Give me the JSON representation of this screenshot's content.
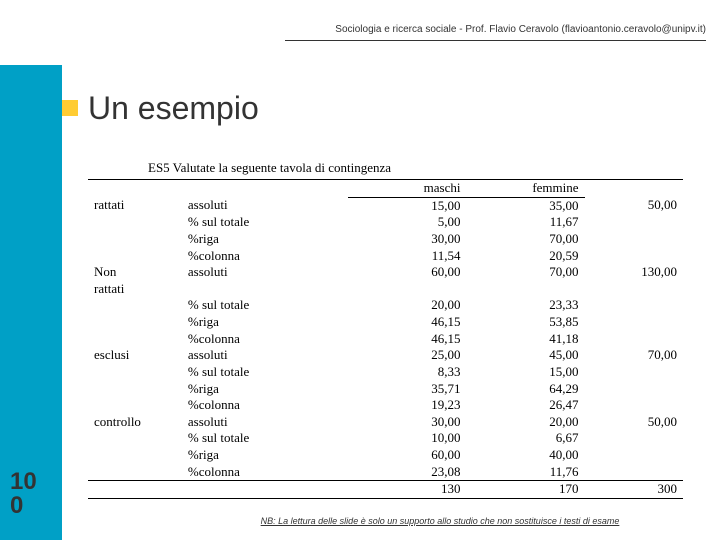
{
  "header": {
    "text": "Sociologia e ricerca sociale - Prof. Flavio Ceravolo (flavioantonio.ceravolo@unipv.it)"
  },
  "title": "Un esempio",
  "slide_number_line1": "10",
  "slide_number_line2": "0",
  "footer": "NB: La lettura delle slide è solo un supporto allo studio che non sostituisce i testi di esame",
  "table": {
    "caption": "ES5 Valutate la seguente tavola di contingenza",
    "columns": [
      "maschi",
      "femmine"
    ],
    "groups": [
      {
        "label": "rattati",
        "rows": [
          {
            "measure": "assoluti",
            "m": "15,00",
            "f": "35,00",
            "tot": "50,00"
          },
          {
            "measure": "% sul totale",
            "m": "5,00",
            "f": "11,67",
            "tot": ""
          },
          {
            "measure": "%riga",
            "m": "30,00",
            "f": "70,00",
            "tot": ""
          },
          {
            "measure": "%colonna",
            "m": "11,54",
            "f": "20,59",
            "tot": ""
          }
        ]
      },
      {
        "label": "Non rattati",
        "label_line1": "Non",
        "label_line2": "rattati",
        "rows": [
          {
            "measure": "assoluti",
            "m": "60,00",
            "f": "70,00",
            "tot": "130,00"
          },
          {
            "measure": "",
            "m": "",
            "f": "",
            "tot": ""
          },
          {
            "measure": "% sul totale",
            "m": "20,00",
            "f": "23,33",
            "tot": ""
          },
          {
            "measure": "%riga",
            "m": "46,15",
            "f": "53,85",
            "tot": ""
          },
          {
            "measure": "%colonna",
            "m": "46,15",
            "f": "41,18",
            "tot": ""
          }
        ]
      },
      {
        "label": "esclusi",
        "rows": [
          {
            "measure": "assoluti",
            "m": "25,00",
            "f": "45,00",
            "tot": "70,00"
          },
          {
            "measure": "% sul totale",
            "m": "8,33",
            "f": "15,00",
            "tot": ""
          },
          {
            "measure": "%riga",
            "m": "35,71",
            "f": "64,29",
            "tot": ""
          },
          {
            "measure": "%colonna",
            "m": "19,23",
            "f": "26,47",
            "tot": ""
          }
        ]
      },
      {
        "label": "controllo",
        "rows": [
          {
            "measure": "assoluti",
            "m": "30,00",
            "f": "20,00",
            "tot": "50,00"
          },
          {
            "measure": "% sul totale",
            "m": "10,00",
            "f": "6,67",
            "tot": ""
          },
          {
            "measure": "%riga",
            "m": "60,00",
            "f": "40,00",
            "tot": ""
          },
          {
            "measure": "%colonna",
            "m": "23,08",
            "f": "11,76",
            "tot": ""
          }
        ]
      }
    ],
    "totals": {
      "m": "130",
      "f": "170",
      "tot": "300"
    }
  },
  "colors": {
    "side": "#00a0c6",
    "accent": "#ffcc33",
    "text": "#333333"
  }
}
